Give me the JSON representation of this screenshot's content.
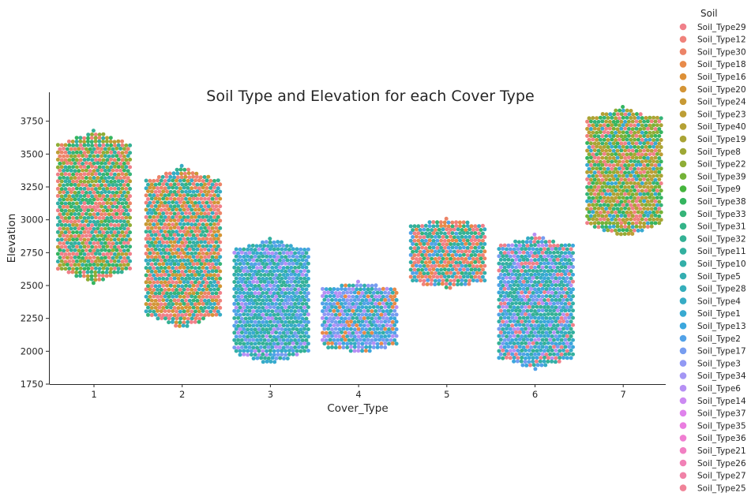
{
  "chart_data": {
    "type": "scatter",
    "subtype": "swarm",
    "title": "Soil Type and Elevation for each Cover Type",
    "xlabel": "Cover_Type",
    "ylabel": "Elevation",
    "categories": [
      "1",
      "2",
      "3",
      "4",
      "5",
      "6",
      "7"
    ],
    "y_ticks": [
      1750,
      2000,
      2250,
      2500,
      2750,
      3000,
      3250,
      3500,
      3750
    ],
    "ylim": [
      1750,
      3970
    ],
    "grid": false,
    "legend": {
      "title": "Soil",
      "placement": "right, outside plot",
      "entries": [
        {
          "name": "Soil_Type29",
          "color": "#f0808a"
        },
        {
          "name": "Soil_Type12",
          "color": "#f0827b"
        },
        {
          "name": "Soil_Type30",
          "color": "#ec8468"
        },
        {
          "name": "Soil_Type18",
          "color": "#e88a4a"
        },
        {
          "name": "Soil_Type16",
          "color": "#dd9037"
        },
        {
          "name": "Soil_Type20",
          "color": "#d49536"
        },
        {
          "name": "Soil_Type24",
          "color": "#c89a35"
        },
        {
          "name": "Soil_Type23",
          "color": "#bd9e35"
        },
        {
          "name": "Soil_Type40",
          "color": "#b4a135"
        },
        {
          "name": "Soil_Type19",
          "color": "#aaa435"
        },
        {
          "name": "Soil_Type8",
          "color": "#9ea835"
        },
        {
          "name": "Soil_Type22",
          "color": "#8fad36"
        },
        {
          "name": "Soil_Type39",
          "color": "#74b237"
        },
        {
          "name": "Soil_Type9",
          "color": "#45b53d"
        },
        {
          "name": "Soil_Type38",
          "color": "#35b55f"
        },
        {
          "name": "Soil_Type33",
          "color": "#35b478"
        },
        {
          "name": "Soil_Type31",
          "color": "#34b388"
        },
        {
          "name": "Soil_Type32",
          "color": "#34b195"
        },
        {
          "name": "Soil_Type11",
          "color": "#33b09f"
        },
        {
          "name": "Soil_Type10",
          "color": "#33afa8"
        },
        {
          "name": "Soil_Type5",
          "color": "#34aeb1"
        },
        {
          "name": "Soil_Type28",
          "color": "#35aebb"
        },
        {
          "name": "Soil_Type4",
          "color": "#36acc5"
        },
        {
          "name": "Soil_Type1",
          "color": "#38aad1"
        },
        {
          "name": "Soil_Type13",
          "color": "#3ca7dd"
        },
        {
          "name": "Soil_Type2",
          "color": "#52a2e8"
        },
        {
          "name": "Soil_Type17",
          "color": "#779df0"
        },
        {
          "name": "Soil_Type3",
          "color": "#9199f4"
        },
        {
          "name": "Soil_Type34",
          "color": "#a396f4"
        },
        {
          "name": "Soil_Type6",
          "color": "#b690f4"
        },
        {
          "name": "Soil_Type14",
          "color": "#cc8af2"
        },
        {
          "name": "Soil_Type37",
          "color": "#df82ec"
        },
        {
          "name": "Soil_Type35",
          "color": "#ea7de0"
        },
        {
          "name": "Soil_Type36",
          "color": "#f07ed2"
        },
        {
          "name": "Soil_Type21",
          "color": "#f180c3"
        },
        {
          "name": "Soil_Type26",
          "color": "#f181b6"
        },
        {
          "name": "Soil_Type27",
          "color": "#f082a7"
        },
        {
          "name": "Soil_Type25",
          "color": "#f08398"
        }
      ]
    },
    "clusters": [
      {
        "category": "1",
        "elevation_range": [
          2520,
          3680
        ],
        "dominant_soils": [
          "Soil_Type29",
          "Soil_Type12",
          "Soil_Type30",
          "Soil_Type23",
          "Soil_Type33",
          "Soil_Type32",
          "Soil_Type22",
          "Soil_Type38",
          "Soil_Type10"
        ]
      },
      {
        "category": "2",
        "elevation_range": [
          2170,
          3410
        ],
        "dominant_soils": [
          "Soil_Type29",
          "Soil_Type30",
          "Soil_Type12",
          "Soil_Type24",
          "Soil_Type20",
          "Soil_Type33",
          "Soil_Type32",
          "Soil_Type10",
          "Soil_Type4"
        ]
      },
      {
        "category": "3",
        "elevation_range": [
          1900,
          2860
        ],
        "dominant_soils": [
          "Soil_Type10",
          "Soil_Type4",
          "Soil_Type2",
          "Soil_Type6",
          "Soil_Type1",
          "Soil_Type17",
          "Soil_Type32",
          "Soil_Type11"
        ]
      },
      {
        "category": "4",
        "elevation_range": [
          1990,
          2530
        ],
        "dominant_soils": [
          "Soil_Type10",
          "Soil_Type3",
          "Soil_Type6",
          "Soil_Type17",
          "Soil_Type2",
          "Soil_Type13",
          "Soil_Type4",
          "Soil_Type18"
        ]
      },
      {
        "category": "5",
        "elevation_range": [
          2480,
          3010
        ],
        "dominant_soils": [
          "Soil_Type18",
          "Soil_Type29",
          "Soil_Type30",
          "Soil_Type12",
          "Soil_Type33",
          "Soil_Type32",
          "Soil_Type10",
          "Soil_Type4",
          "Soil_Type2"
        ]
      },
      {
        "category": "6",
        "elevation_range": [
          1860,
          2890
        ],
        "dominant_soils": [
          "Soil_Type10",
          "Soil_Type11",
          "Soil_Type32",
          "Soil_Type4",
          "Soil_Type2",
          "Soil_Type17",
          "Soil_Type6",
          "Soil_Type13",
          "Soil_Type29"
        ]
      },
      {
        "category": "7",
        "elevation_range": [
          2870,
          3860
        ],
        "dominant_soils": [
          "Soil_Type40",
          "Soil_Type19",
          "Soil_Type23",
          "Soil_Type22",
          "Soil_Type39",
          "Soil_Type38",
          "Soil_Type33",
          "Soil_Type29",
          "Soil_Type12",
          "Soil_Type1"
        ]
      }
    ]
  }
}
